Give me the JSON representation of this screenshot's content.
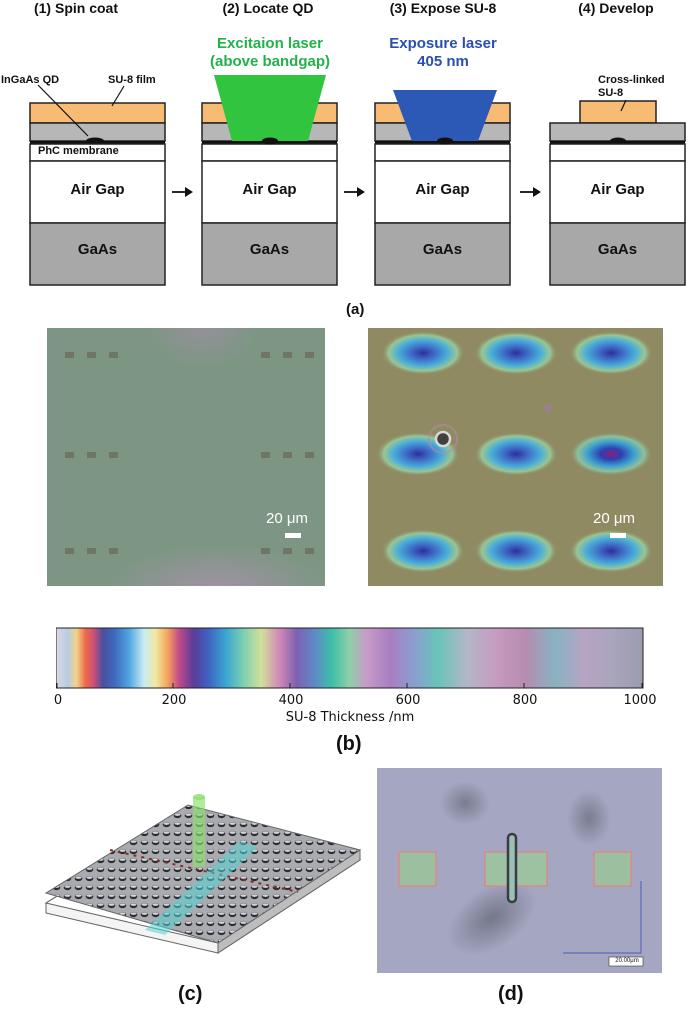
{
  "panel_a": {
    "stages": [
      {
        "title": "(1) Spin coat"
      },
      {
        "title": "(2) Locate QD"
      },
      {
        "title": "(3) Expose SU-8"
      },
      {
        "title": "(4) Develop"
      }
    ],
    "labels": {
      "ingaas_qd": "InGaAs QD",
      "su8_film": "SU-8 film",
      "phc_membrane": "PhC membrane",
      "air_gap": "Air Gap",
      "gaas": "GaAs",
      "excitation_laser_line1": "Excitaion laser",
      "excitation_laser_line2": "(above bandgap)",
      "exposure_laser_line1": "Exposure laser",
      "exposure_laser_line2": "405 nm",
      "crosslinked_line1": "Cross-linked",
      "crosslinked_line2": "SU-8"
    },
    "caption": "(a)",
    "colors": {
      "su8": "#f8bb74",
      "excitation_laser": "#31c43f",
      "exposure_laser": "#2b59b5",
      "excitation_text": "#22b24a",
      "exposure_text": "#2b4fb0",
      "gaas": "#a8a8a8"
    }
  },
  "panel_b": {
    "scale_left": "20 μm",
    "scale_right": "20 μm",
    "colorbar": {
      "ticks": [
        "0",
        "200",
        "400",
        "600",
        "800",
        "1000"
      ],
      "title": "SU-8 Thickness /nm"
    },
    "caption": "(b)"
  },
  "panel_c": {
    "caption": "(c)"
  },
  "panel_d": {
    "scale_text": "20.00μm",
    "caption": "(d)"
  }
}
